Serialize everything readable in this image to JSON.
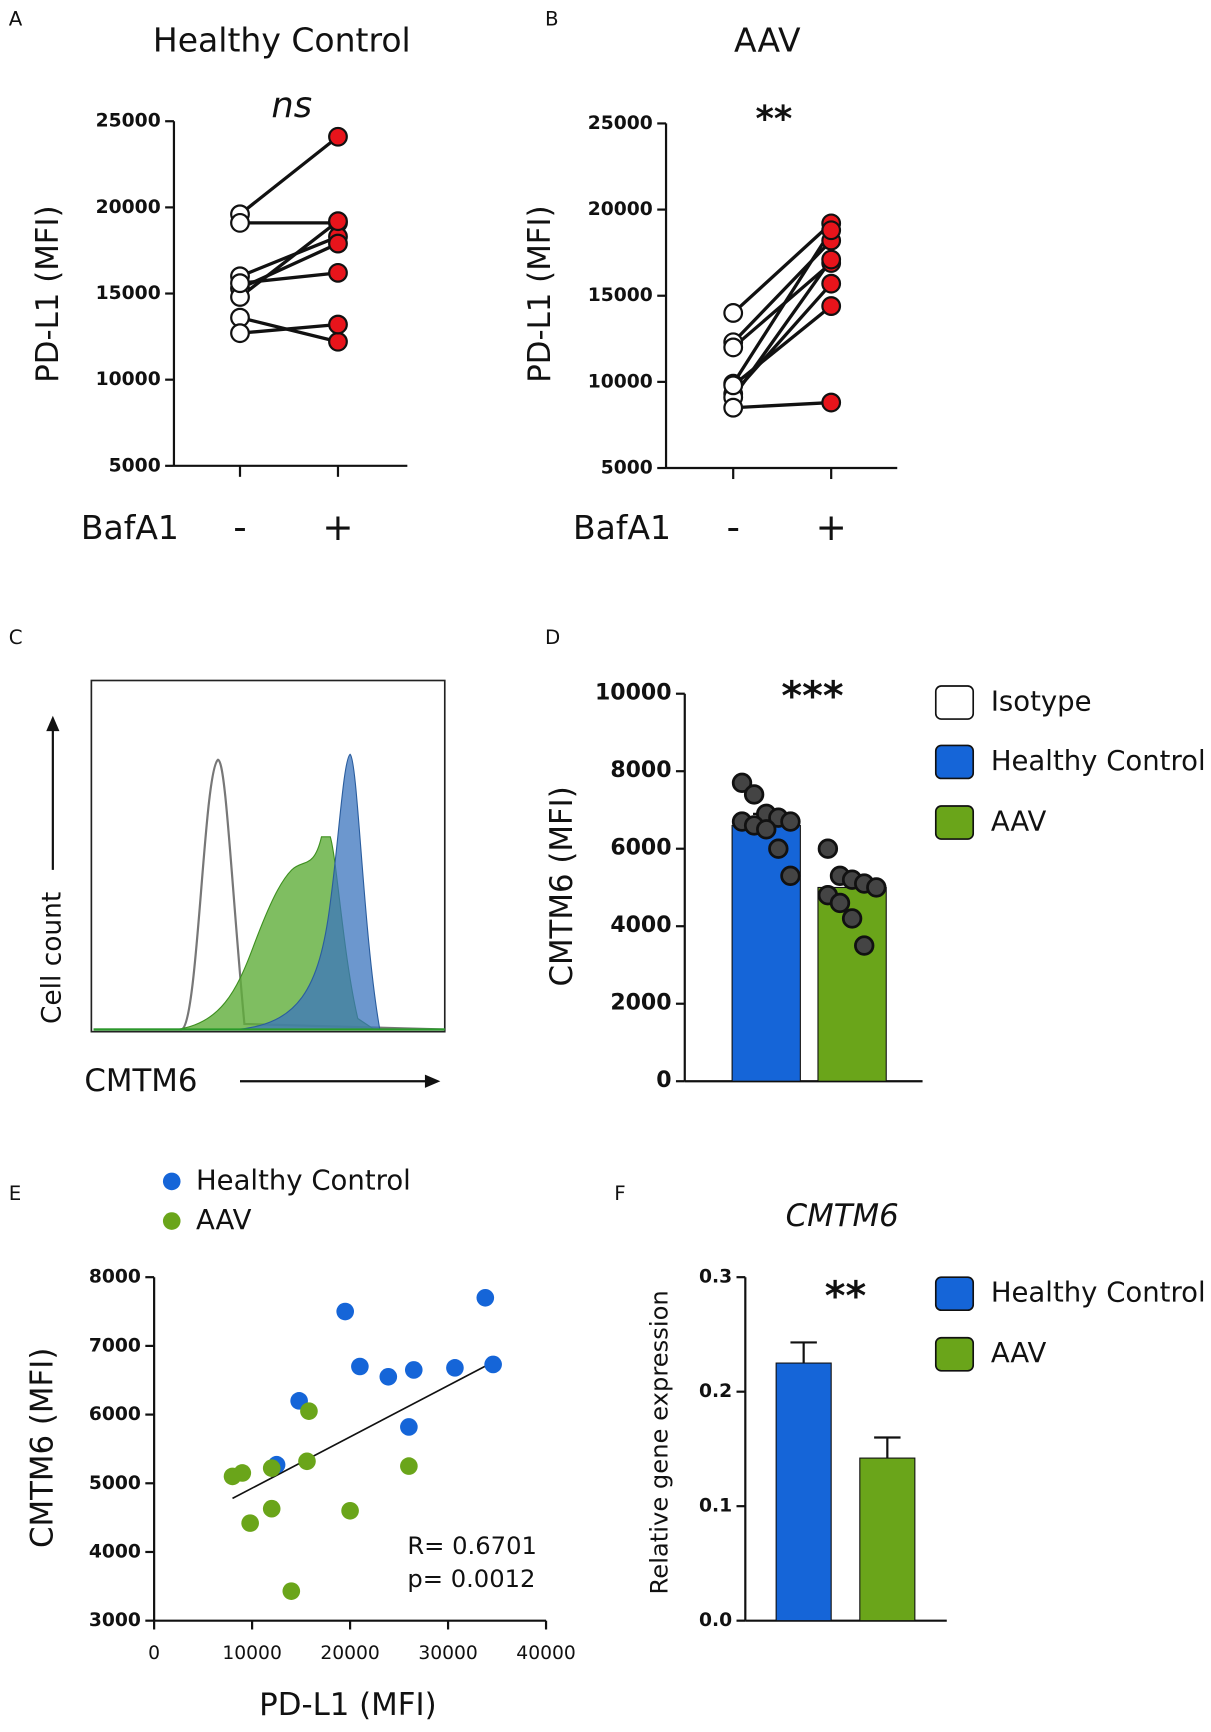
{
  "chart_data": [
    {
      "type": "paired",
      "panel": "A",
      "title": "Healthy Control",
      "annotation": "ns",
      "y_label": "PD-L1 (MFI)",
      "x_label": "BafA1",
      "categories": [
        "-",
        "+"
      ],
      "colors": [
        "#ffffff",
        "#e8141b"
      ],
      "values": [
        [
          19600,
          24100
        ],
        [
          19100,
          19100
        ],
        [
          16000,
          18300
        ],
        [
          15300,
          17900
        ],
        [
          14800,
          19200
        ],
        [
          13600,
          12200
        ],
        [
          12700,
          13200
        ],
        [
          15600,
          16200
        ]
      ],
      "ylim": [
        5000,
        25000
      ],
      "yticks": [
        5000,
        10000,
        15000,
        20000,
        25000
      ]
    },
    {
      "type": "paired",
      "panel": "B",
      "title": "AAV",
      "annotation": "**",
      "y_label": "PD-L1 (MFI)",
      "x_label": "BafA1",
      "categories": [
        "-",
        "+"
      ],
      "colors": [
        "#ffffff",
        "#e8141b"
      ],
      "values": [
        [
          14000,
          19200
        ],
        [
          12300,
          18200
        ],
        [
          12000,
          16900
        ],
        [
          9900,
          18800
        ],
        [
          9300,
          15700
        ],
        [
          9100,
          17100
        ],
        [
          8500,
          8800
        ],
        [
          9800,
          14400
        ]
      ],
      "ylim": [
        5000,
        25000
      ],
      "yticks": [
        5000,
        10000,
        15000,
        20000,
        25000
      ]
    },
    {
      "type": "flow_histogram",
      "panel": "C",
      "y_label": "Cell count",
      "x_label": "CMTM6"
    },
    {
      "type": "bar",
      "panel": "D",
      "annotation": "***",
      "y_label": "CMTM6 (MFI)",
      "legend": [
        {
          "name": "Isotype",
          "color": "#ffffff"
        },
        {
          "name": "Healthy Control",
          "color": "#1565d8"
        },
        {
          "name": "AAV",
          "color": "#6aa51a"
        }
      ],
      "values": [
        6600,
        5000
      ],
      "errors": [
        300,
        260
      ],
      "colors": [
        "#1565d8",
        "#6aa51a"
      ],
      "points": [
        [
          7700,
          7400,
          6900,
          6800,
          6700,
          6700,
          6600,
          6500,
          6000,
          5300
        ],
        [
          6000,
          5300,
          5200,
          5100,
          5000,
          4800,
          4600,
          4200,
          3500
        ]
      ],
      "ylim": [
        0,
        10000
      ],
      "yticks": [
        0,
        2000,
        4000,
        6000,
        8000,
        10000
      ]
    },
    {
      "type": "scatter",
      "panel": "E",
      "x_label": "PD-L1 (MFI)",
      "y_label": "CMTM6 (MFI)",
      "series": [
        {
          "name": "Healthy Control",
          "color": "#1565d8",
          "x": [
            19500,
            33800,
            21000,
            23900,
            26500,
            30700,
            34600,
            14800,
            26000,
            12500
          ],
          "values": [
            7500,
            7700,
            6700,
            6550,
            6650,
            6680,
            6730,
            6200,
            5820,
            5270
          ]
        },
        {
          "name": "AAV",
          "color": "#6aa51a",
          "x": [
            15800,
            15600,
            12000,
            8000,
            9000,
            26000,
            12000,
            9800,
            20000,
            14000
          ],
          "values": [
            6050,
            5320,
            5220,
            5100,
            5150,
            5250,
            4630,
            4420,
            4600,
            3430
          ]
        }
      ],
      "trend_line": {
        "x": [
          8000,
          34000
        ],
        "y": [
          4780,
          6720
        ]
      },
      "annotations": [
        "R= 0.6701",
        "p= 0.0012"
      ],
      "xlim": [
        0,
        40000
      ],
      "xticks": [
        0,
        10000,
        20000,
        30000,
        40000
      ],
      "ylim": [
        3000,
        8000
      ],
      "yticks": [
        3000,
        4000,
        5000,
        6000,
        7000,
        8000
      ]
    },
    {
      "type": "bar",
      "panel": "F",
      "title": "CMTM6",
      "annotation": "**",
      "y_label": "Relative gene expression",
      "legend": [
        {
          "name": "Healthy Control",
          "color": "#1565d8"
        },
        {
          "name": "AAV",
          "color": "#6aa51a"
        }
      ],
      "values": [
        0.225,
        0.142
      ],
      "errors": [
        0.018,
        0.018
      ],
      "colors": [
        "#1565d8",
        "#6aa51a"
      ],
      "ylim": [
        0,
        0.3
      ],
      "yticks": [
        {
          "value": 0,
          "label": "0.0"
        },
        0.1,
        0.2,
        0.3
      ]
    }
  ]
}
